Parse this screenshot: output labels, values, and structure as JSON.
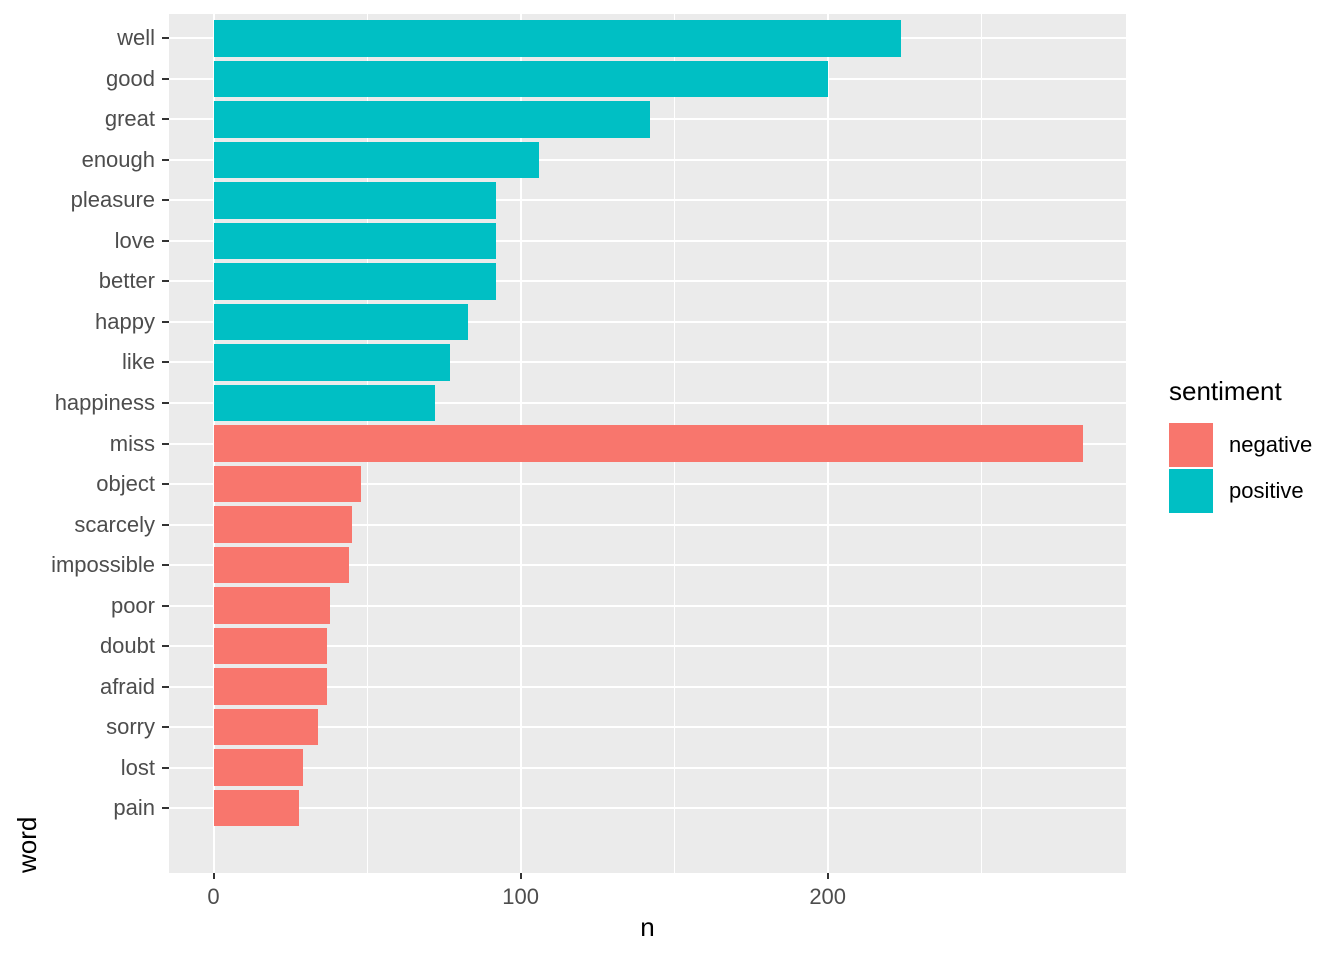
{
  "chart_data": {
    "type": "bar",
    "orientation": "horizontal",
    "xlabel": "n",
    "ylabel": "word",
    "categories": [
      "well",
      "good",
      "great",
      "enough",
      "pleasure",
      "love",
      "better",
      "happy",
      "like",
      "happiness",
      "miss",
      "object",
      "scarcely",
      "impossible",
      "poor",
      "doubt",
      "afraid",
      "sorry",
      "lost",
      "pain"
    ],
    "series": [
      {
        "name": "n",
        "values": [
          224,
          200,
          142,
          106,
          92,
          92,
          92,
          83,
          77,
          72,
          283,
          48,
          45,
          44,
          38,
          37,
          37,
          34,
          29,
          28
        ]
      }
    ],
    "sentiment_by_word": [
      "positive",
      "positive",
      "positive",
      "positive",
      "positive",
      "positive",
      "positive",
      "positive",
      "positive",
      "positive",
      "negative",
      "negative",
      "negative",
      "negative",
      "negative",
      "negative",
      "negative",
      "negative",
      "negative",
      "negative"
    ],
    "x_ticks": [
      0,
      100,
      200
    ],
    "x_minor_gridlines": [
      50,
      150,
      250
    ],
    "xlim": [
      -14.5,
      297.15
    ],
    "bar_fraction": 0.9,
    "grid": true,
    "legend_position": "right"
  },
  "legend": {
    "title": "sentiment",
    "entries": [
      {
        "label": "negative",
        "color": "#F8766D"
      },
      {
        "label": "positive",
        "color": "#00BFC4"
      }
    ]
  },
  "colors": {
    "negative": "#F8766D",
    "positive": "#00BFC4",
    "panel_background": "#EBEBEB",
    "gridline": "#FFFFFF",
    "axis_text": "#4D4D4D",
    "axis_title": "#000000",
    "tick_mark": "#333333"
  }
}
